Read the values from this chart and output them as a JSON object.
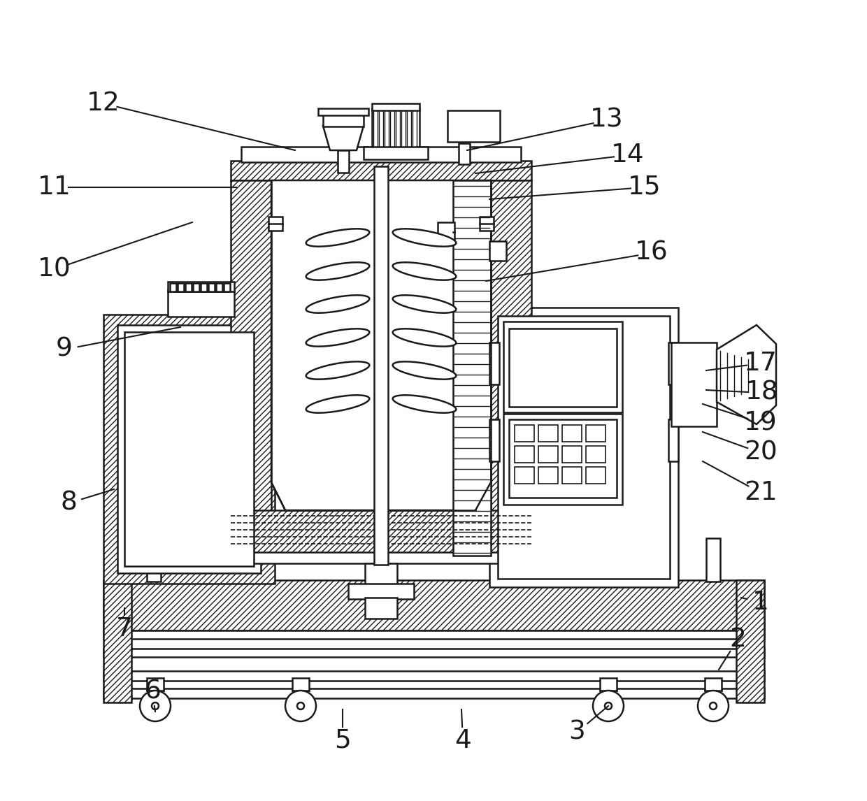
{
  "bg": "#ffffff",
  "lc": "#1a1a1a",
  "lw": 1.8,
  "annotations": [
    [
      1,
      1088,
      862,
      1060,
      855
    ],
    [
      2,
      1055,
      915,
      1028,
      958
    ],
    [
      3,
      825,
      1048,
      870,
      1010
    ],
    [
      4,
      662,
      1060,
      660,
      1015
    ],
    [
      5,
      490,
      1060,
      490,
      1015
    ],
    [
      6,
      218,
      990,
      222,
      1018
    ],
    [
      7,
      178,
      900,
      178,
      870
    ],
    [
      8,
      98,
      720,
      163,
      700
    ],
    [
      9,
      92,
      500,
      258,
      468
    ],
    [
      10,
      78,
      385,
      275,
      318
    ],
    [
      11,
      78,
      268,
      338,
      268
    ],
    [
      12,
      148,
      148,
      422,
      215
    ],
    [
      13,
      868,
      172,
      668,
      215
    ],
    [
      14,
      898,
      222,
      680,
      248
    ],
    [
      15,
      922,
      268,
      700,
      285
    ],
    [
      16,
      932,
      362,
      695,
      402
    ],
    [
      17,
      1088,
      520,
      1010,
      530
    ],
    [
      18,
      1090,
      562,
      1010,
      558
    ],
    [
      19,
      1088,
      605,
      1005,
      578
    ],
    [
      20,
      1088,
      648,
      1005,
      618
    ],
    [
      21,
      1088,
      705,
      1005,
      660
    ]
  ]
}
